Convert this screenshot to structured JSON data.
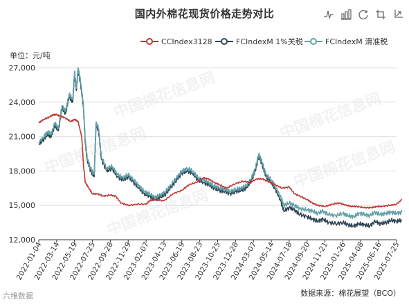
{
  "title": "国内外棉花现货价格走势对比",
  "unit_label": "单位：元/吨",
  "source": "数据来源：棉花展望（BCO）",
  "corner_mark": "六维数据",
  "watermark_text": "中国棉花信息网",
  "toolbox": [
    "line-chart-icon",
    "bar-chart-icon",
    "restore-icon",
    "data-zoom-icon",
    "data-zoom-reset-icon"
  ],
  "chart_data": {
    "type": "line",
    "ylim": [
      12000,
      27000
    ],
    "yticks": [
      "12,000",
      "15,000",
      "18,000",
      "21,000",
      "24,000",
      "27,000"
    ],
    "xticks": [
      "2022-01-04",
      "2022-03-14",
      "2022-05-19",
      "2022-07-25",
      "2022-09-28",
      "2022-11-29",
      "2023-02-07",
      "2023-04-13",
      "2023-06-19",
      "2023-08-23",
      "2023-10-25",
      "2023-12-28",
      "2024-03-07",
      "2024-05-14",
      "2024-07-18",
      "2024-09-20",
      "2024-11-21",
      "2025-01-26",
      "2025-04-08",
      "2025-06-16",
      "2025-07-25"
    ],
    "series": [
      {
        "name": "CCIndex3128",
        "color": "#c23531",
        "points": [
          [
            0,
            22200
          ],
          [
            0.3,
            22500
          ],
          [
            0.6,
            22700
          ],
          [
            0.8,
            22900
          ],
          [
            1.0,
            22900
          ],
          [
            1.2,
            22800
          ],
          [
            1.5,
            22600
          ],
          [
            1.8,
            22300
          ],
          [
            2.0,
            22500
          ],
          [
            2.2,
            22300
          ],
          [
            2.4,
            21000
          ],
          [
            2.5,
            18500
          ],
          [
            2.6,
            17000
          ],
          [
            2.8,
            16500
          ],
          [
            3.0,
            16000
          ],
          [
            3.3,
            16000
          ],
          [
            3.6,
            15800
          ],
          [
            4.0,
            15900
          ],
          [
            4.3,
            15800
          ],
          [
            4.6,
            15200
          ],
          [
            5.0,
            15000
          ],
          [
            5.5,
            15100
          ],
          [
            6.0,
            15100
          ],
          [
            6.2,
            15400
          ],
          [
            6.5,
            15500
          ],
          [
            7.0,
            15400
          ],
          [
            7.5,
            16000
          ],
          [
            8.0,
            16300
          ],
          [
            8.4,
            16800
          ],
          [
            8.8,
            17000
          ],
          [
            9.2,
            17400
          ],
          [
            9.5,
            17300
          ],
          [
            9.8,
            17000
          ],
          [
            10.1,
            16800
          ],
          [
            10.5,
            16500
          ],
          [
            11.0,
            16900
          ],
          [
            11.4,
            17100
          ],
          [
            11.8,
            17000
          ],
          [
            12.2,
            17300
          ],
          [
            12.5,
            17300
          ],
          [
            12.8,
            17100
          ],
          [
            13.2,
            16800
          ],
          [
            13.6,
            16500
          ],
          [
            14.0,
            16600
          ],
          [
            14.3,
            16000
          ],
          [
            14.6,
            15800
          ],
          [
            15.0,
            15500
          ],
          [
            15.3,
            15200
          ],
          [
            15.6,
            15000
          ],
          [
            16.0,
            14900
          ],
          [
            16.4,
            15100
          ],
          [
            16.8,
            15200
          ],
          [
            17.2,
            15000
          ],
          [
            17.5,
            14900
          ],
          [
            17.8,
            14900
          ],
          [
            18.2,
            14800
          ],
          [
            18.6,
            14800
          ],
          [
            18.9,
            14900
          ],
          [
            19.2,
            14900
          ],
          [
            19.6,
            15000
          ],
          [
            20.0,
            15100
          ],
          [
            20.3,
            15500
          ]
        ]
      },
      {
        "name": "FCIndexM 1%关税",
        "color": "#2f4554",
        "points": [
          [
            0,
            20300
          ],
          [
            0.3,
            20800
          ],
          [
            0.5,
            21200
          ],
          [
            0.7,
            21000
          ],
          [
            0.9,
            22000
          ],
          [
            1.1,
            21500
          ],
          [
            1.3,
            23500
          ],
          [
            1.5,
            23000
          ],
          [
            1.7,
            24500
          ],
          [
            1.9,
            24000
          ],
          [
            2.0,
            26500
          ],
          [
            2.1,
            25000
          ],
          [
            2.2,
            26800
          ],
          [
            2.35,
            25500
          ],
          [
            2.5,
            23500
          ],
          [
            2.6,
            20500
          ],
          [
            2.7,
            19000
          ],
          [
            2.9,
            18000
          ],
          [
            3.1,
            17500
          ],
          [
            3.2,
            22000
          ],
          [
            3.35,
            21500
          ],
          [
            3.5,
            19000
          ],
          [
            3.8,
            18000
          ],
          [
            4.1,
            18200
          ],
          [
            4.4,
            17500
          ],
          [
            4.7,
            17200
          ],
          [
            5.0,
            17500
          ],
          [
            5.3,
            17000
          ],
          [
            5.6,
            16500
          ],
          [
            5.9,
            16000
          ],
          [
            6.2,
            15800
          ],
          [
            6.5,
            15500
          ],
          [
            6.8,
            15700
          ],
          [
            7.1,
            16000
          ],
          [
            7.4,
            16600
          ],
          [
            7.7,
            17200
          ],
          [
            8.0,
            17800
          ],
          [
            8.3,
            18000
          ],
          [
            8.6,
            17800
          ],
          [
            8.9,
            17200
          ],
          [
            9.2,
            17000
          ],
          [
            9.5,
            16800
          ],
          [
            9.8,
            16500
          ],
          [
            10.1,
            16300
          ],
          [
            10.4,
            16200
          ],
          [
            10.7,
            16000
          ],
          [
            11.0,
            16200
          ],
          [
            11.3,
            16300
          ],
          [
            11.6,
            16500
          ],
          [
            11.9,
            17200
          ],
          [
            12.1,
            18000
          ],
          [
            12.3,
            19300
          ],
          [
            12.5,
            18500
          ],
          [
            12.7,
            17500
          ],
          [
            13.0,
            17000
          ],
          [
            13.2,
            16500
          ],
          [
            13.5,
            15500
          ],
          [
            13.7,
            14500
          ],
          [
            14.0,
            14800
          ],
          [
            14.3,
            14600
          ],
          [
            14.6,
            14200
          ],
          [
            15.0,
            14000
          ],
          [
            15.3,
            13800
          ],
          [
            15.6,
            13600
          ],
          [
            15.9,
            13800
          ],
          [
            16.2,
            13500
          ],
          [
            16.6,
            13400
          ],
          [
            17.0,
            13500
          ],
          [
            17.3,
            13300
          ],
          [
            17.6,
            13200
          ],
          [
            17.9,
            13400
          ],
          [
            18.2,
            13300
          ],
          [
            18.5,
            13200
          ],
          [
            18.8,
            13600
          ],
          [
            19.1,
            13400
          ],
          [
            19.4,
            13500
          ],
          [
            19.7,
            13700
          ],
          [
            20.0,
            13600
          ],
          [
            20.3,
            13700
          ]
        ]
      },
      {
        "name": "FCIndexM 滑准税",
        "color": "#61a0a8",
        "points": [
          [
            0,
            20500
          ],
          [
            0.3,
            21000
          ],
          [
            0.5,
            21400
          ],
          [
            0.7,
            21200
          ],
          [
            0.9,
            22200
          ],
          [
            1.1,
            21700
          ],
          [
            1.3,
            23700
          ],
          [
            1.5,
            23200
          ],
          [
            1.7,
            24700
          ],
          [
            1.9,
            24200
          ],
          [
            2.0,
            26700
          ],
          [
            2.1,
            25200
          ],
          [
            2.2,
            27000
          ],
          [
            2.35,
            25700
          ],
          [
            2.5,
            23700
          ],
          [
            2.6,
            20700
          ],
          [
            2.7,
            19200
          ],
          [
            2.9,
            18200
          ],
          [
            3.1,
            17700
          ],
          [
            3.2,
            22200
          ],
          [
            3.35,
            21700
          ],
          [
            3.5,
            19200
          ],
          [
            3.8,
            18200
          ],
          [
            4.1,
            18400
          ],
          [
            4.4,
            17700
          ],
          [
            4.7,
            17400
          ],
          [
            5.0,
            17700
          ],
          [
            5.3,
            17200
          ],
          [
            5.6,
            16700
          ],
          [
            5.9,
            16200
          ],
          [
            6.2,
            16000
          ],
          [
            6.5,
            15700
          ],
          [
            6.8,
            15900
          ],
          [
            7.1,
            16200
          ],
          [
            7.4,
            16800
          ],
          [
            7.7,
            17400
          ],
          [
            8.0,
            18000
          ],
          [
            8.3,
            18200
          ],
          [
            8.6,
            18000
          ],
          [
            8.9,
            17400
          ],
          [
            9.2,
            17200
          ],
          [
            9.5,
            17000
          ],
          [
            9.8,
            16700
          ],
          [
            10.1,
            16500
          ],
          [
            10.4,
            16400
          ],
          [
            10.7,
            16200
          ],
          [
            11.0,
            16400
          ],
          [
            11.3,
            16500
          ],
          [
            11.6,
            16700
          ],
          [
            11.9,
            17400
          ],
          [
            12.1,
            18200
          ],
          [
            12.3,
            19500
          ],
          [
            12.5,
            18700
          ],
          [
            12.7,
            17700
          ],
          [
            13.0,
            17200
          ],
          [
            13.2,
            16700
          ],
          [
            13.5,
            15800
          ],
          [
            13.7,
            15000
          ],
          [
            14.0,
            15200
          ],
          [
            14.3,
            15000
          ],
          [
            14.6,
            14700
          ],
          [
            15.0,
            14600
          ],
          [
            15.3,
            14500
          ],
          [
            15.6,
            14300
          ],
          [
            15.9,
            14500
          ],
          [
            16.2,
            14200
          ],
          [
            16.6,
            14100
          ],
          [
            17.0,
            14300
          ],
          [
            17.3,
            14100
          ],
          [
            17.6,
            14000
          ],
          [
            17.9,
            14300
          ],
          [
            18.2,
            14200
          ],
          [
            18.5,
            14100
          ],
          [
            18.8,
            14400
          ],
          [
            19.1,
            14200
          ],
          [
            19.4,
            14300
          ],
          [
            19.7,
            14400
          ],
          [
            20.0,
            14300
          ],
          [
            20.3,
            14400
          ]
        ]
      }
    ]
  }
}
